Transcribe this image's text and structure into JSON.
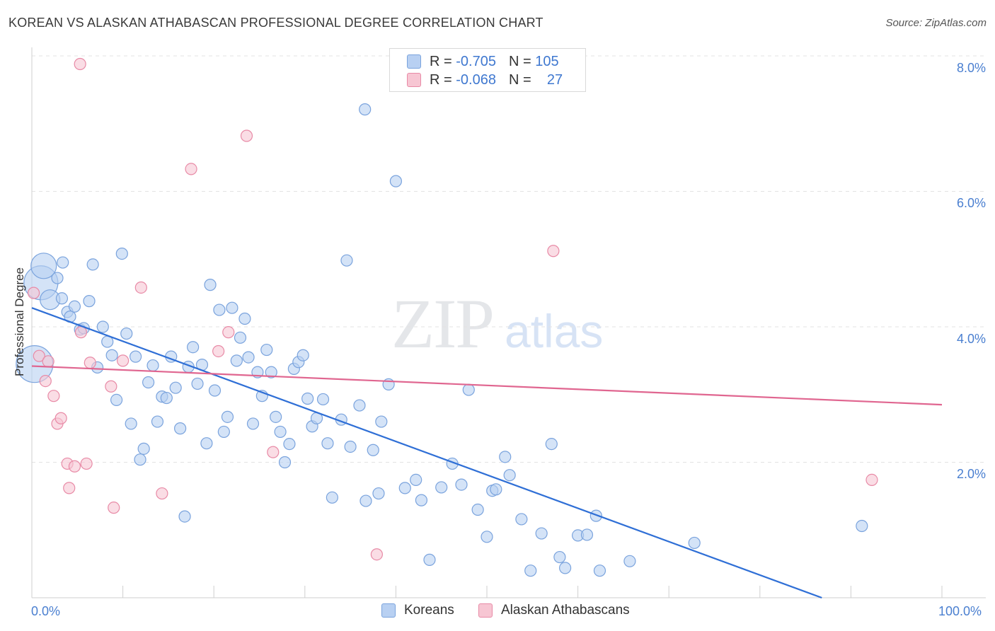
{
  "title": "KOREAN VS ALASKAN ATHABASCAN PROFESSIONAL DEGREE CORRELATION CHART",
  "source": "Source: ZipAtlas.com",
  "watermark": {
    "zip": "ZIP",
    "atlas": "atlas"
  },
  "legend": {
    "r_label": "R =",
    "n_label": "N =",
    "series": [
      {
        "r": "-0.705",
        "n": "105",
        "color": "#a9c6ee",
        "border": "#7aa3dd"
      },
      {
        "r": "-0.068",
        "n": "27",
        "color": "#f6bccb",
        "border": "#e88aa6"
      }
    ]
  },
  "bottom_legend": [
    {
      "label": "Koreans",
      "color": "#b8d0f2",
      "border": "#7aa3dd"
    },
    {
      "label": "Alaskan Athabascans",
      "color": "#f7c6d3",
      "border": "#e88aa6"
    }
  ],
  "chart_data": {
    "type": "scatter",
    "title": "KOREAN VS ALASKAN ATHABASCAN PROFESSIONAL DEGREE CORRELATION CHART",
    "xlabel": "",
    "ylabel": "Professional Degree",
    "xlim": [
      0,
      100
    ],
    "ylim": [
      0,
      8.2
    ],
    "x_tick_labels": [
      "0.0%",
      "100.0%"
    ],
    "y_ticks": [
      {
        "value": 2,
        "label": "2.0%"
      },
      {
        "value": 4,
        "label": "4.0%"
      },
      {
        "value": 6,
        "label": "6.0%"
      },
      {
        "value": 8,
        "label": "8.0%"
      }
    ],
    "grid": true,
    "legend_position": "top-center",
    "series": [
      {
        "name": "Koreans",
        "color": "#7aa3dd",
        "fill": "#b8d0f2",
        "trend": {
          "x": [
            0,
            86.8
          ],
          "y": [
            4.28,
            0
          ]
        },
        "points": [
          [
            0.3,
            3.45,
            26
          ],
          [
            1.0,
            4.65,
            24
          ],
          [
            1.3,
            4.9,
            18
          ],
          [
            2.0,
            4.4,
            14
          ],
          [
            2.8,
            4.72,
            10
          ],
          [
            3.4,
            4.95,
            10
          ],
          [
            3.9,
            4.22,
            10
          ],
          [
            4.2,
            4.15,
            10
          ],
          [
            4.7,
            4.3,
            10
          ],
          [
            5.3,
            3.96,
            10
          ],
          [
            5.7,
            3.98,
            10
          ],
          [
            6.3,
            4.38,
            10
          ],
          [
            6.7,
            4.92,
            10
          ],
          [
            7.2,
            3.4,
            10
          ],
          [
            7.8,
            4.0,
            10
          ],
          [
            8.3,
            3.78,
            10
          ],
          [
            8.8,
            3.58,
            10
          ],
          [
            9.3,
            2.92,
            10
          ],
          [
            9.9,
            5.08,
            10
          ],
          [
            10.4,
            3.9,
            10
          ],
          [
            10.9,
            2.57,
            10
          ],
          [
            11.4,
            3.56,
            10
          ],
          [
            11.9,
            2.04,
            10
          ],
          [
            12.3,
            2.2,
            10
          ],
          [
            12.8,
            3.18,
            10
          ],
          [
            13.3,
            3.43,
            10
          ],
          [
            13.8,
            2.6,
            10
          ],
          [
            14.3,
            2.97,
            10
          ],
          [
            14.8,
            2.95,
            10
          ],
          [
            15.3,
            3.56,
            10
          ],
          [
            15.8,
            3.1,
            10
          ],
          [
            16.3,
            2.5,
            10
          ],
          [
            16.8,
            1.2,
            10
          ],
          [
            17.2,
            3.41,
            10
          ],
          [
            17.7,
            3.7,
            10
          ],
          [
            18.2,
            3.16,
            10
          ],
          [
            18.7,
            3.44,
            10
          ],
          [
            19.2,
            2.28,
            10
          ],
          [
            19.6,
            4.62,
            10
          ],
          [
            20.1,
            3.06,
            10
          ],
          [
            20.6,
            4.25,
            10
          ],
          [
            21.1,
            2.45,
            10
          ],
          [
            21.5,
            2.67,
            10
          ],
          [
            22.0,
            4.28,
            10
          ],
          [
            22.5,
            3.5,
            10
          ],
          [
            22.9,
            3.84,
            10
          ],
          [
            23.4,
            4.12,
            10
          ],
          [
            23.8,
            3.55,
            10
          ],
          [
            24.3,
            2.57,
            10
          ],
          [
            24.8,
            3.33,
            10
          ],
          [
            25.3,
            2.98,
            10
          ],
          [
            25.8,
            3.66,
            10
          ],
          [
            26.3,
            3.33,
            10
          ],
          [
            26.8,
            2.67,
            10
          ],
          [
            27.3,
            2.45,
            10
          ],
          [
            27.8,
            2.0,
            10
          ],
          [
            28.3,
            2.27,
            10
          ],
          [
            28.8,
            3.38,
            10
          ],
          [
            29.3,
            3.48,
            10
          ],
          [
            29.8,
            3.58,
            10
          ],
          [
            30.3,
            2.94,
            10
          ],
          [
            30.8,
            2.53,
            10
          ],
          [
            31.3,
            2.65,
            10
          ],
          [
            32.0,
            2.93,
            10
          ],
          [
            32.5,
            2.28,
            10
          ],
          [
            33.0,
            1.48,
            10
          ],
          [
            34.0,
            2.63,
            10
          ],
          [
            34.6,
            4.98,
            10
          ],
          [
            35.0,
            2.23,
            10
          ],
          [
            36.0,
            2.84,
            10
          ],
          [
            36.7,
            1.43,
            10
          ],
          [
            37.5,
            2.18,
            10
          ],
          [
            38.1,
            1.54,
            10
          ],
          [
            38.4,
            2.6,
            10
          ],
          [
            39.2,
            3.15,
            10
          ],
          [
            40.0,
            6.15,
            10
          ],
          [
            41.0,
            1.62,
            10
          ],
          [
            42.2,
            1.74,
            10
          ],
          [
            42.8,
            1.44,
            10
          ],
          [
            43.7,
            0.56,
            10
          ],
          [
            45.0,
            1.63,
            10
          ],
          [
            46.2,
            1.98,
            10
          ],
          [
            47.2,
            1.67,
            10
          ],
          [
            48.0,
            3.07,
            10
          ],
          [
            49.0,
            1.3,
            10
          ],
          [
            50.0,
            0.9,
            10
          ],
          [
            50.6,
            1.58,
            10
          ],
          [
            51.0,
            1.6,
            10
          ],
          [
            52.0,
            2.08,
            10
          ],
          [
            52.5,
            1.81,
            10
          ],
          [
            53.8,
            1.16,
            10
          ],
          [
            54.8,
            0.4,
            10
          ],
          [
            56.0,
            0.95,
            10
          ],
          [
            57.1,
            2.27,
            10
          ],
          [
            58.0,
            0.6,
            10
          ],
          [
            58.6,
            0.44,
            10
          ],
          [
            60.0,
            0.92,
            10
          ],
          [
            61.0,
            0.93,
            10
          ],
          [
            62.0,
            1.21,
            10
          ],
          [
            62.4,
            0.4,
            10
          ],
          [
            65.7,
            0.54,
            10
          ],
          [
            36.6,
            7.21,
            10
          ],
          [
            72.8,
            0.81,
            10
          ],
          [
            91.2,
            1.06,
            10
          ],
          [
            3.3,
            4.42,
            10
          ]
        ]
      },
      {
        "name": "Alaskan Athabascans",
        "color": "#e88aa6",
        "fill": "#f7c6d3",
        "trend": {
          "x": [
            0,
            100
          ],
          "y": [
            3.42,
            2.85
          ]
        },
        "points": [
          [
            0.2,
            4.5,
            10
          ],
          [
            0.8,
            3.57,
            10
          ],
          [
            1.5,
            3.2,
            10
          ],
          [
            1.8,
            3.49,
            10
          ],
          [
            2.4,
            2.98,
            10
          ],
          [
            2.8,
            2.57,
            10
          ],
          [
            3.2,
            2.65,
            10
          ],
          [
            3.9,
            1.98,
            10
          ],
          [
            4.1,
            1.62,
            10
          ],
          [
            4.7,
            1.94,
            10
          ],
          [
            5.4,
            3.92,
            10
          ],
          [
            6.0,
            1.98,
            10
          ],
          [
            6.4,
            3.47,
            10
          ],
          [
            8.7,
            3.12,
            10
          ],
          [
            9.0,
            1.33,
            10
          ],
          [
            10.0,
            3.5,
            10
          ],
          [
            12.0,
            4.58,
            10
          ],
          [
            14.3,
            1.54,
            10
          ],
          [
            17.5,
            6.33,
            10
          ],
          [
            20.5,
            3.64,
            10
          ],
          [
            21.6,
            3.92,
            10
          ],
          [
            23.6,
            6.82,
            10
          ],
          [
            26.5,
            2.15,
            10
          ],
          [
            37.9,
            0.64,
            10
          ],
          [
            5.3,
            7.88,
            10
          ],
          [
            57.3,
            5.12,
            10
          ],
          [
            92.3,
            1.74,
            10
          ]
        ]
      }
    ]
  }
}
